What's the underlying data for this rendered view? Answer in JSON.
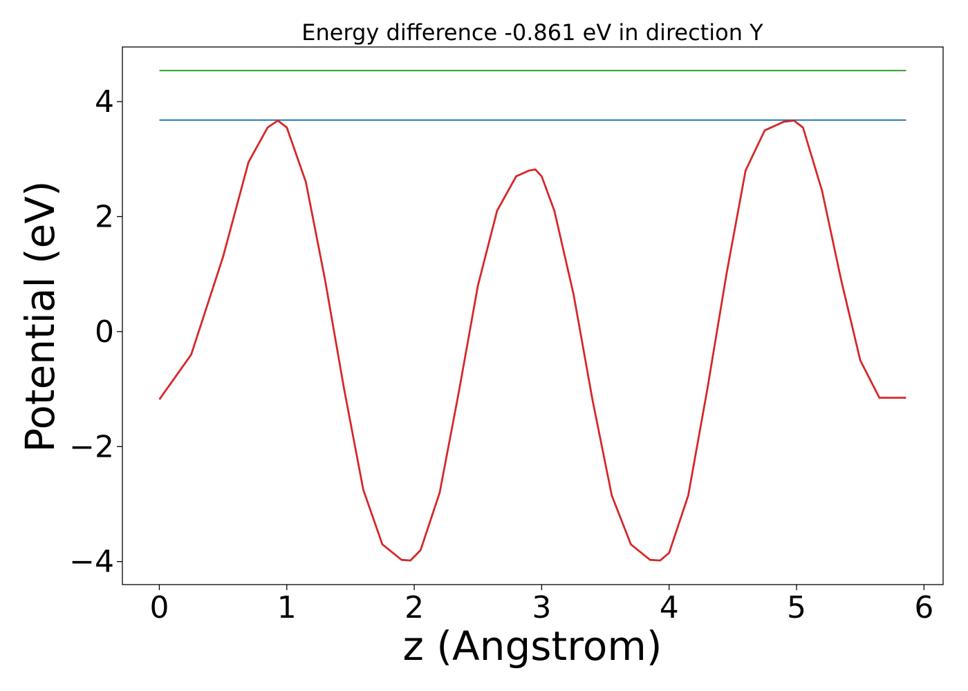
{
  "chart_data": {
    "type": "line",
    "title": "Energy difference -0.861 eV in direction Y",
    "xlabel": "z (Angstrom)",
    "ylabel": "Potential (eV)",
    "xlim": [
      -0.29,
      6.15
    ],
    "ylim": [
      -4.4,
      4.95
    ],
    "xticks": [
      0,
      1,
      2,
      3,
      4,
      5,
      6
    ],
    "yticks": [
      -4,
      -2,
      0,
      2,
      4
    ],
    "ytick_labels": [
      "−4",
      "−2",
      "0",
      "2",
      "4"
    ],
    "grid": false,
    "legend": "none",
    "series": [
      {
        "color": "#2ca02c",
        "x": [
          0,
          5.86
        ],
        "y": [
          4.54,
          4.54
        ]
      },
      {
        "color": "#1f77b4",
        "x": [
          0,
          5.86
        ],
        "y": [
          3.68,
          3.68
        ]
      },
      {
        "color": "#d62728",
        "x": [
          0.0,
          0.25,
          0.5,
          0.7,
          0.85,
          0.93,
          1.0,
          1.15,
          1.3,
          1.45,
          1.6,
          1.75,
          1.9,
          1.97,
          2.05,
          2.2,
          2.35,
          2.5,
          2.65,
          2.8,
          2.9,
          2.95,
          3.0,
          3.1,
          3.25,
          3.4,
          3.55,
          3.7,
          3.85,
          3.93,
          4.0,
          4.15,
          4.3,
          4.45,
          4.6,
          4.75,
          4.9,
          4.98,
          5.05,
          5.2,
          5.35,
          5.5,
          5.65,
          5.86
        ],
        "y": [
          -1.18,
          -0.4,
          1.3,
          2.95,
          3.55,
          3.67,
          3.55,
          2.6,
          0.9,
          -1.0,
          -2.75,
          -3.7,
          -3.97,
          -3.98,
          -3.8,
          -2.8,
          -1.05,
          0.8,
          2.1,
          2.7,
          2.8,
          2.82,
          2.7,
          2.1,
          0.65,
          -1.2,
          -2.85,
          -3.7,
          -3.97,
          -3.98,
          -3.85,
          -2.85,
          -1.0,
          1.0,
          2.8,
          3.5,
          3.65,
          3.67,
          3.55,
          2.45,
          0.9,
          -0.5,
          -1.15,
          -1.15
        ]
      }
    ]
  }
}
